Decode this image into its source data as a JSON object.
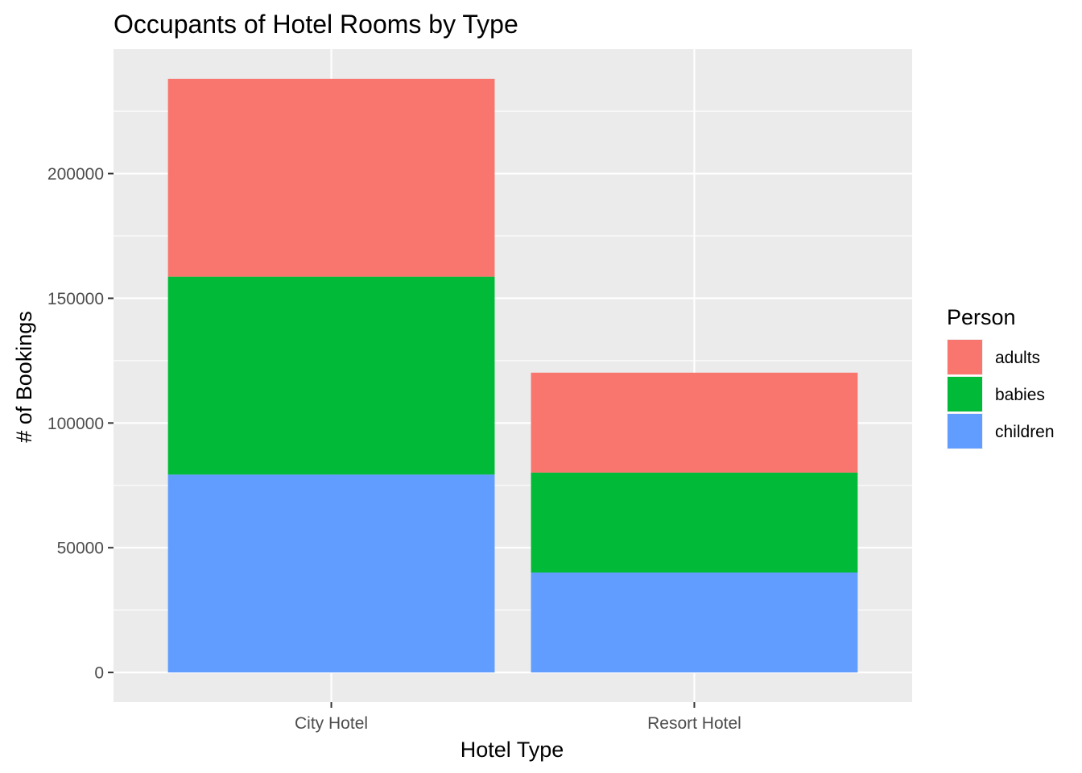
{
  "chart_data": {
    "type": "bar",
    "stacked": true,
    "title": "Occupants of Hotel Rooms by Type",
    "xlabel": "Hotel Type",
    "ylabel": "# of Bookings",
    "categories": [
      "City Hotel",
      "Resort Hotel"
    ],
    "series": [
      {
        "name": "children",
        "color": "#619CFF",
        "values": [
          79330,
          40060
        ]
      },
      {
        "name": "babies",
        "color": "#00BA38",
        "values": [
          79330,
          40060
        ]
      },
      {
        "name": "adults",
        "color": "#F8766D",
        "values": [
          79330,
          40060
        ]
      }
    ],
    "ylim": [
      -11899.5,
      249889.5
    ],
    "yticks": [
      0,
      50000,
      100000,
      150000,
      200000
    ],
    "ytick_labels": [
      "0",
      "50000",
      "100000",
      "150000",
      "200000"
    ],
    "grid": true,
    "panel_background": "#EBEBEB",
    "legend": {
      "title": "Person",
      "position": "right",
      "items": [
        "adults",
        "babies",
        "children"
      ]
    }
  }
}
